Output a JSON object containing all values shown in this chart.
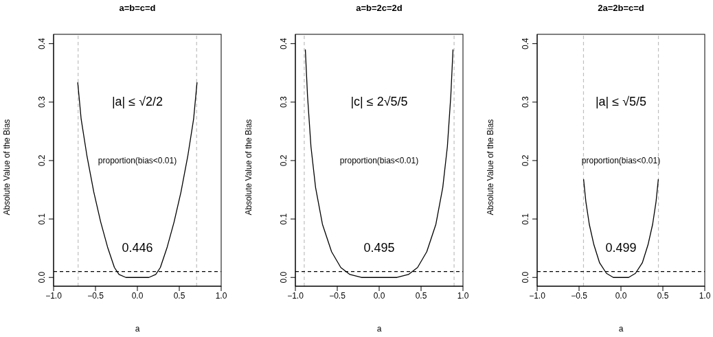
{
  "chart_data": [
    {
      "type": "line",
      "title": "a=b=c=d",
      "xlabel": "a",
      "ylabel": "Absolute Value of the Bias",
      "annotations": [
        "|a| ≤ √2/2",
        "proportion(bias<0.01)",
        "0.446"
      ],
      "series": [
        {
          "color": "#000000",
          "x": [
            -0.712,
            -0.671,
            -0.603,
            -0.52,
            -0.438,
            -0.356,
            -0.274,
            -0.219,
            -0.137,
            0,
            0.137,
            0.219,
            0.274,
            0.356,
            0.438,
            0.52,
            0.603,
            0.671,
            0.712
          ],
          "values": [
            0.334,
            0.271,
            0.209,
            0.146,
            0.095,
            0.052,
            0.017,
            0.005,
            0,
            0,
            0,
            0.005,
            0.017,
            0.052,
            0.095,
            0.146,
            0.209,
            0.271,
            0.334
          ]
        }
      ],
      "xlim": [
        -1,
        1
      ],
      "ylim": [
        -0.015,
        0.416
      ],
      "xticks": [
        {
          "value": -1,
          "label": "−1.0"
        },
        {
          "value": -0.5,
          "label": "−0.5"
        },
        {
          "value": 0,
          "label": "0.0"
        },
        {
          "value": 0.5,
          "label": "0.5"
        },
        {
          "value": 1,
          "label": "1.0"
        }
      ],
      "yticks": [
        {
          "value": 0,
          "label": "0.0"
        },
        {
          "value": 0.1,
          "label": "0.1"
        },
        {
          "value": 0.2,
          "label": "0.2"
        },
        {
          "value": 0.3,
          "label": "0.3"
        },
        {
          "value": 0.4,
          "label": "0.4"
        }
      ],
      "ref_lines": [
        {
          "axis": "x",
          "value": -0.707,
          "color": "#bebebe",
          "line_style": "dashed"
        },
        {
          "axis": "x",
          "value": 0.707,
          "color": "#bebebe",
          "line_style": "dashed"
        },
        {
          "axis": "y",
          "value": 0.01,
          "color": "#000000",
          "line_style": "dashed"
        }
      ],
      "grid": false,
      "legend": false,
      "marker": "none",
      "line_style": "solid"
    },
    {
      "type": "line",
      "title": "a=b=2c=2d",
      "xlabel": "a",
      "ylabel": "Absolute Value of the Bias",
      "annotations": [
        "|c| ≤ 2√5/5",
        "proportion(bias<0.01)",
        "0.495"
      ],
      "series": [
        {
          "color": "#000000",
          "x": [
            -0.881,
            -0.855,
            -0.814,
            -0.759,
            -0.677,
            -0.568,
            -0.458,
            -0.349,
            -0.212,
            0,
            0.212,
            0.349,
            0.458,
            0.568,
            0.677,
            0.759,
            0.814,
            0.855,
            0.881
          ],
          "values": [
            0.39,
            0.311,
            0.224,
            0.154,
            0.091,
            0.044,
            0.017,
            0.005,
            0,
            0,
            0,
            0.005,
            0.017,
            0.044,
            0.091,
            0.154,
            0.224,
            0.311,
            0.39
          ]
        }
      ],
      "xlim": [
        -1,
        1
      ],
      "ylim": [
        -0.015,
        0.416
      ],
      "xticks": [
        {
          "value": -1,
          "label": "−1.0"
        },
        {
          "value": -0.5,
          "label": "−0.5"
        },
        {
          "value": 0,
          "label": "0.0"
        },
        {
          "value": 0.5,
          "label": "0.5"
        },
        {
          "value": 1,
          "label": "1.0"
        }
      ],
      "yticks": [
        {
          "value": 0,
          "label": "0.0"
        },
        {
          "value": 0.1,
          "label": "0.1"
        },
        {
          "value": 0.2,
          "label": "0.2"
        },
        {
          "value": 0.3,
          "label": "0.3"
        },
        {
          "value": 0.4,
          "label": "0.4"
        }
      ],
      "ref_lines": [
        {
          "axis": "x",
          "value": -0.894,
          "color": "#bebebe",
          "line_style": "dashed"
        },
        {
          "axis": "x",
          "value": 0.894,
          "color": "#bebebe",
          "line_style": "dashed"
        },
        {
          "axis": "y",
          "value": 0.01,
          "color": "#000000",
          "line_style": "dashed"
        }
      ],
      "grid": false,
      "legend": false,
      "marker": "none",
      "line_style": "solid"
    },
    {
      "type": "line",
      "title": "2a=2b=c=d",
      "xlabel": "a",
      "ylabel": "Absolute Value of the Bias",
      "annotations": [
        "|a| ≤ √5/5",
        "proportion(bias<0.01)",
        "0.499"
      ],
      "series": [
        {
          "color": "#000000",
          "x": [
            -0.446,
            -0.419,
            -0.378,
            -0.323,
            -0.255,
            -0.173,
            -0.091,
            0,
            0.091,
            0.173,
            0.255,
            0.323,
            0.378,
            0.419,
            0.446
          ],
          "values": [
            0.168,
            0.13,
            0.091,
            0.056,
            0.025,
            0.007,
            0,
            0,
            0,
            0.007,
            0.025,
            0.056,
            0.091,
            0.13,
            0.168
          ]
        }
      ],
      "xlim": [
        -1,
        1
      ],
      "ylim": [
        -0.015,
        0.416
      ],
      "xticks": [
        {
          "value": -1,
          "label": "−1.0"
        },
        {
          "value": -0.5,
          "label": "−0.5"
        },
        {
          "value": 0,
          "label": "0.0"
        },
        {
          "value": 0.5,
          "label": "0.5"
        },
        {
          "value": 1,
          "label": "1.0"
        }
      ],
      "yticks": [
        {
          "value": 0,
          "label": "0.0"
        },
        {
          "value": 0.1,
          "label": "0.1"
        },
        {
          "value": 0.2,
          "label": "0.2"
        },
        {
          "value": 0.3,
          "label": "0.3"
        },
        {
          "value": 0.4,
          "label": "0.4"
        }
      ],
      "ref_lines": [
        {
          "axis": "x",
          "value": -0.447,
          "color": "#bebebe",
          "line_style": "dashed"
        },
        {
          "axis": "x",
          "value": 0.447,
          "color": "#bebebe",
          "line_style": "dashed"
        },
        {
          "axis": "y",
          "value": 0.01,
          "color": "#000000",
          "line_style": "dashed"
        }
      ],
      "grid": false,
      "legend": false,
      "marker": "none",
      "line_style": "solid"
    }
  ]
}
